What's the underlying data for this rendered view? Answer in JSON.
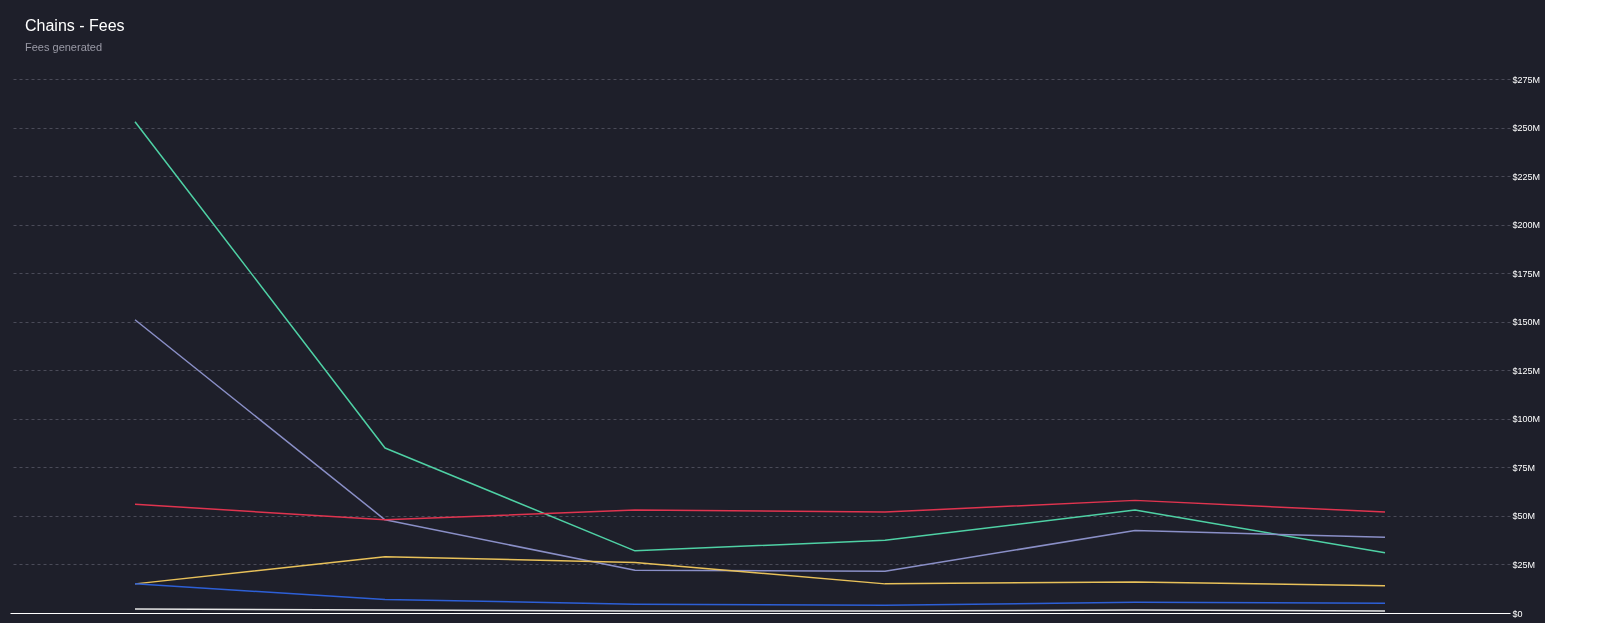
{
  "chart_data": {
    "type": "line",
    "title": "Chains - Fees",
    "subtitle": "Fees generated",
    "categories": [
      null,
      null,
      null,
      null,
      null,
      null
    ],
    "series": [
      {
        "color": "#4fd1a5",
        "values": [
          253,
          85,
          32,
          37.5,
          53,
          31
        ]
      },
      {
        "color": "#8a8fc7",
        "values": [
          151,
          48,
          22,
          21.5,
          42.5,
          39
        ]
      },
      {
        "color": "#e0344f",
        "values": [
          56,
          48,
          53,
          52,
          58,
          52
        ]
      },
      {
        "color": "#e8c15a",
        "values": [
          15,
          29,
          26,
          15,
          16,
          14
        ]
      },
      {
        "color": "#2d5fd6",
        "values": [
          15,
          7,
          4.5,
          4,
          5.5,
          5
        ]
      },
      {
        "color": "#e6e6e6",
        "values": [
          2,
          1.5,
          1,
          1,
          1.5,
          1
        ]
      }
    ],
    "ylim": [
      0,
      275
    ],
    "yticks": [
      {
        "value": 0,
        "label": "$0"
      },
      {
        "value": 25,
        "label": "$25M"
      },
      {
        "value": 50,
        "label": "$50M"
      },
      {
        "value": 75,
        "label": "$75M"
      },
      {
        "value": 100,
        "label": "$100M"
      },
      {
        "value": 125,
        "label": "$125M"
      },
      {
        "value": 150,
        "label": "$150M"
      },
      {
        "value": 175,
        "label": "$175M"
      },
      {
        "value": 200,
        "label": "$200M"
      },
      {
        "value": 225,
        "label": "$225M"
      },
      {
        "value": 250,
        "label": "$250M"
      },
      {
        "value": 275,
        "label": "$275M"
      }
    ],
    "grid": "y",
    "legend": false,
    "marker": "none",
    "line_style": "solid",
    "tick_labels": "y"
  }
}
